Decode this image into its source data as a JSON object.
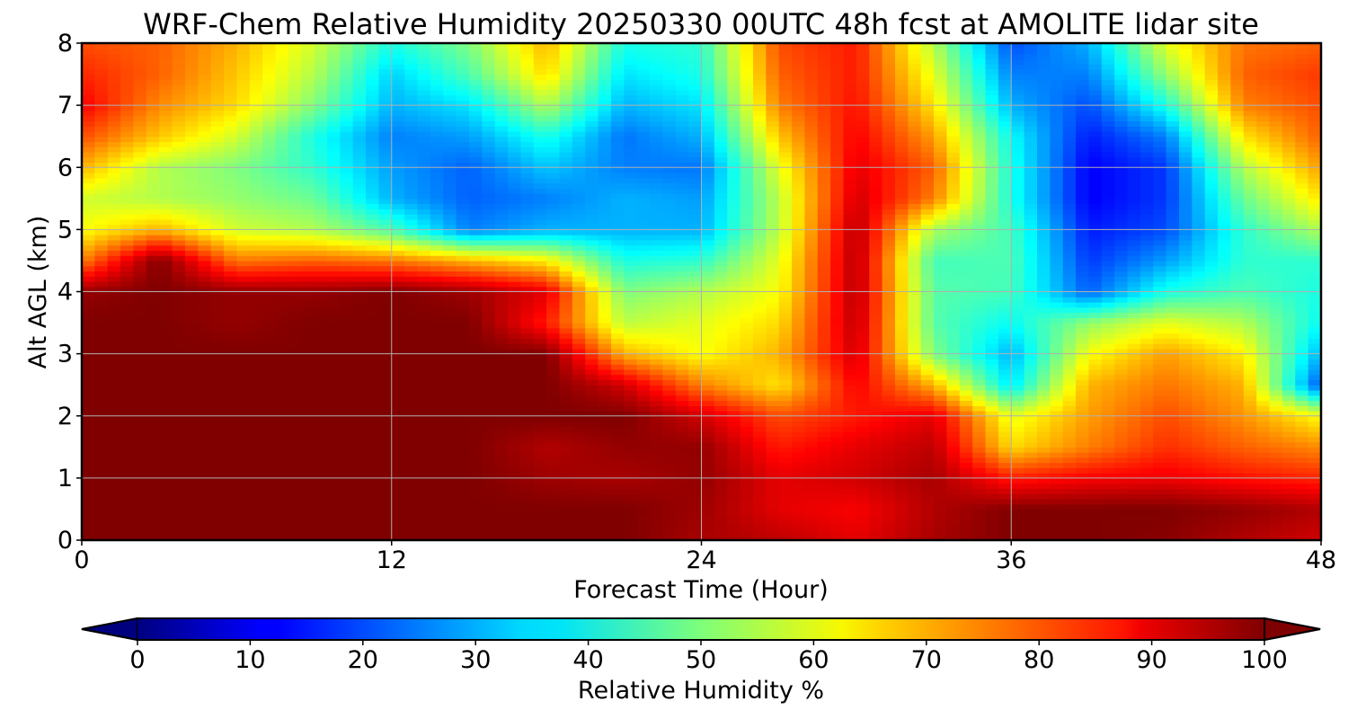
{
  "chart_data": {
    "type": "heatmap",
    "title": "WRF-Chem Relative Humidity 20250330 00UTC 48h fcst at AMOLITE lidar site",
    "xlabel": "Forecast Time (Hour)",
    "ylabel": "Alt AGL (km)",
    "xlim": [
      0,
      48
    ],
    "ylim": [
      0,
      8
    ],
    "xticks": [
      0,
      12,
      24,
      36,
      48
    ],
    "yticks": [
      0,
      1,
      2,
      3,
      4,
      5,
      6,
      7,
      8
    ],
    "grid": true,
    "colormap": "jet",
    "colorbar": {
      "label": "Relative Humidity %",
      "vmin": 0,
      "vmax": 100,
      "ticks": [
        0,
        10,
        20,
        30,
        40,
        50,
        60,
        70,
        80,
        90,
        100
      ],
      "extend": "both",
      "orientation": "horizontal"
    },
    "x": [
      0,
      3,
      6,
      9,
      12,
      15,
      18,
      21,
      24,
      27,
      30,
      33,
      36,
      39,
      42,
      45,
      48
    ],
    "y": [
      0,
      0.5,
      1,
      1.5,
      2,
      2.5,
      3,
      3.5,
      4,
      4.5,
      5,
      5.5,
      6,
      6.5,
      7,
      7.5,
      8
    ],
    "z": [
      [
        100,
        100,
        100,
        100,
        100,
        100,
        100,
        100,
        96,
        94,
        90,
        96,
        100,
        100,
        99,
        95,
        92
      ],
      [
        100,
        100,
        100,
        100,
        100,
        100,
        100,
        100,
        97,
        90,
        88,
        95,
        100,
        100,
        100,
        98,
        95
      ],
      [
        100,
        100,
        100,
        100,
        100,
        100,
        97,
        96,
        98,
        90,
        92,
        96,
        85,
        88,
        89,
        86,
        84
      ],
      [
        100,
        100,
        100,
        100,
        100,
        100,
        95,
        98,
        98,
        85,
        90,
        94,
        66,
        75,
        83,
        78,
        74
      ],
      [
        100,
        100,
        100,
        100,
        100,
        100,
        100,
        100,
        92,
        80,
        85,
        90,
        60,
        72,
        80,
        73,
        62
      ],
      [
        100,
        100,
        100,
        100,
        100,
        100,
        100,
        92,
        75,
        65,
        88,
        70,
        35,
        70,
        76,
        70,
        20
      ],
      [
        100,
        100,
        100,
        100,
        100,
        100,
        100,
        70,
        62,
        70,
        92,
        50,
        30,
        62,
        72,
        64,
        30
      ],
      [
        100,
        100,
        98,
        100,
        100,
        100,
        85,
        56,
        60,
        66,
        94,
        46,
        38,
        52,
        60,
        55,
        38
      ],
      [
        98,
        100,
        98,
        98,
        100,
        97,
        90,
        50,
        55,
        62,
        95,
        46,
        44,
        22,
        40,
        45,
        40
      ],
      [
        75,
        100,
        76,
        78,
        76,
        70,
        64,
        40,
        42,
        60,
        95,
        44,
        45,
        18,
        28,
        42,
        42
      ],
      [
        62,
        70,
        58,
        55,
        45,
        25,
        30,
        30,
        30,
        56,
        95,
        54,
        44,
        15,
        20,
        42,
        55
      ],
      [
        58,
        55,
        52,
        48,
        30,
        22,
        25,
        30,
        28,
        56,
        92,
        75,
        40,
        12,
        18,
        48,
        65
      ],
      [
        70,
        55,
        50,
        42,
        28,
        22,
        32,
        25,
        24,
        60,
        90,
        78,
        40,
        12,
        18,
        55,
        72
      ],
      [
        80,
        68,
        58,
        40,
        25,
        28,
        40,
        24,
        30,
        68,
        88,
        72,
        38,
        15,
        25,
        65,
        78
      ],
      [
        88,
        74,
        66,
        50,
        30,
        35,
        55,
        30,
        35,
        75,
        86,
        65,
        30,
        20,
        40,
        75,
        80
      ],
      [
        84,
        78,
        68,
        55,
        33,
        45,
        66,
        35,
        40,
        78,
        85,
        60,
        25,
        25,
        52,
        78,
        82
      ],
      [
        80,
        78,
        70,
        58,
        40,
        50,
        70,
        40,
        42,
        80,
        85,
        55,
        20,
        30,
        60,
        76,
        78
      ]
    ]
  }
}
